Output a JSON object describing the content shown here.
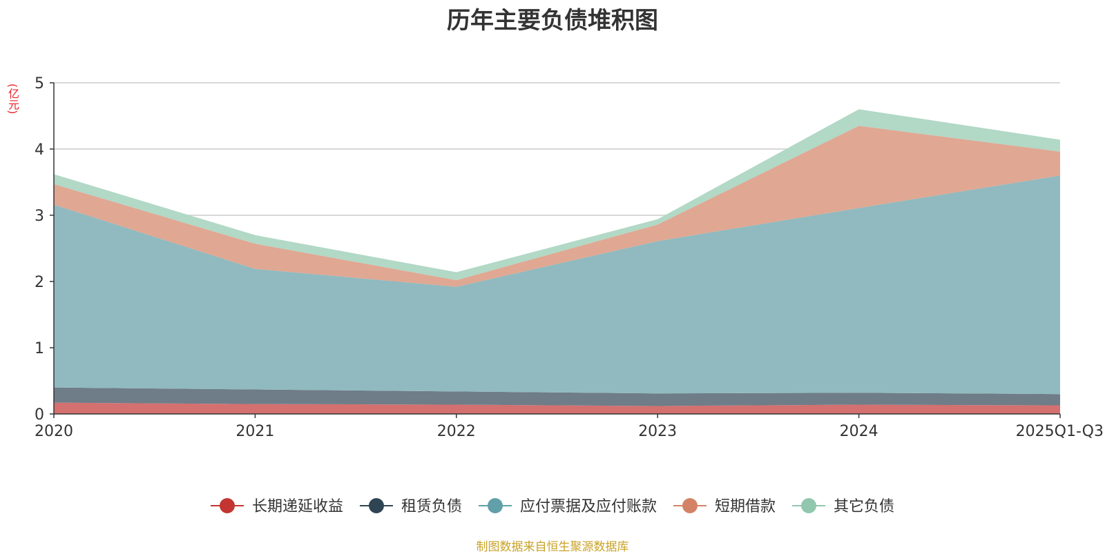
{
  "title": "历年主要负债堆积图",
  "unit": "(亿元)",
  "source": "制图数据来自恒生聚源数据库",
  "chart_data": {
    "type": "area",
    "stacked": true,
    "title": "历年主要负债堆积图",
    "ylabel": "(亿元)",
    "categories": [
      "2020",
      "2021",
      "2022",
      "2023",
      "2024",
      "2025Q1-Q3"
    ],
    "ylim": [
      0,
      5
    ],
    "yticks": [
      0,
      1,
      2,
      3,
      4,
      5
    ],
    "grid": true,
    "legend_position": "bottom",
    "series": [
      {
        "name": "长期递延收益",
        "color": "#c23531",
        "fill": "#d47070",
        "values": [
          0.17,
          0.15,
          0.14,
          0.12,
          0.14,
          0.13
        ]
      },
      {
        "name": "租赁负债",
        "color": "#2f4554",
        "fill": "#6f7d88",
        "values": [
          0.23,
          0.22,
          0.2,
          0.19,
          0.18,
          0.17
        ]
      },
      {
        "name": "应付票据及应付账款",
        "color": "#61a0a8",
        "fill": "#90babf",
        "values": [
          2.76,
          1.82,
          1.58,
          2.3,
          2.79,
          3.3
        ]
      },
      {
        "name": "短期借款",
        "color": "#d48265",
        "fill": "#e0a792",
        "values": [
          0.31,
          0.38,
          0.1,
          0.25,
          1.24,
          0.36
        ]
      },
      {
        "name": "其它负债",
        "color": "#91c7ae",
        "fill": "#b2d8c6",
        "values": [
          0.15,
          0.13,
          0.12,
          0.08,
          0.25,
          0.18
        ]
      }
    ]
  }
}
